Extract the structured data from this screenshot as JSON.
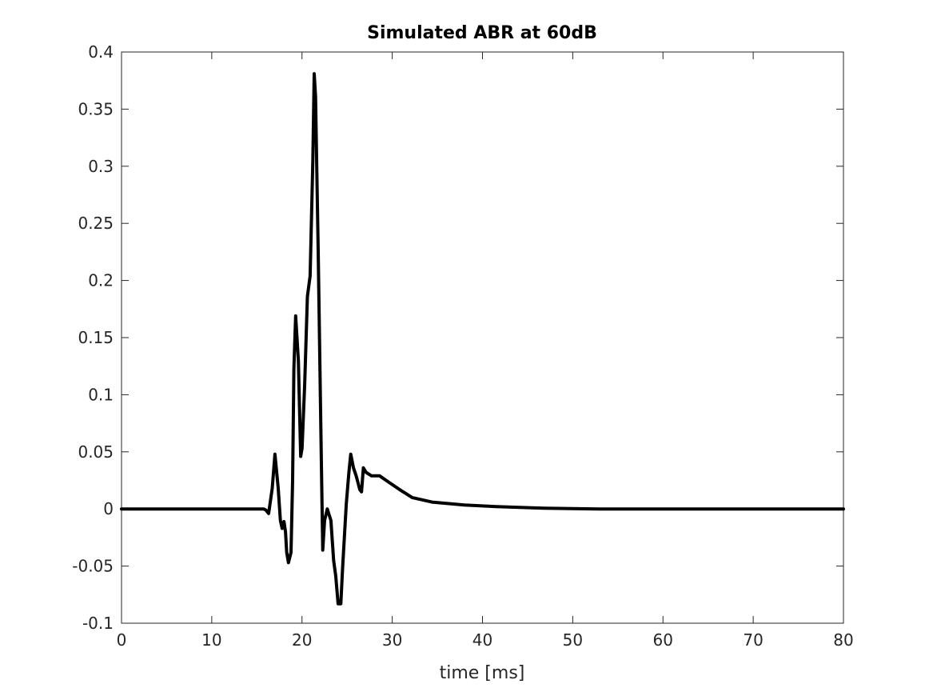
{
  "chart_data": {
    "type": "line",
    "title": "Simulated ABR at 60dB",
    "xlabel": "time [ms]",
    "ylabel": "",
    "xlim": [
      0,
      80
    ],
    "ylim": [
      -0.1,
      0.4
    ],
    "xticks": [
      0,
      10,
      20,
      30,
      40,
      50,
      60,
      70,
      80
    ],
    "xtick_labels": [
      "0",
      "10",
      "20",
      "30",
      "40",
      "50",
      "60",
      "70",
      "80"
    ],
    "yticks": [
      -0.1,
      -0.05,
      0,
      0.05,
      0.1,
      0.15,
      0.2,
      0.25,
      0.3,
      0.35,
      0.4
    ],
    "ytick_labels": [
      "-0.1",
      "-0.05",
      "0",
      "0.05",
      "0.1",
      "0.15",
      "0.2",
      "0.25",
      "0.3",
      "0.35",
      "0.4"
    ],
    "grid": false,
    "line_color": "#000000",
    "series": [
      {
        "x": [
          0,
          15.77,
          16.0,
          16.3,
          16.7,
          17.0,
          17.36,
          17.6,
          17.8,
          18.0,
          18.17,
          18.3,
          18.5,
          18.78,
          18.96,
          19.1,
          19.3,
          19.6,
          19.85,
          20.0,
          20.3,
          20.6,
          20.9,
          21.2,
          21.35,
          21.5,
          21.8,
          22.15,
          22.3,
          22.5,
          22.8,
          23.0,
          23.2,
          23.5,
          23.74,
          24.0,
          24.3,
          24.5,
          24.9,
          25.2,
          25.4,
          25.7,
          26.0,
          26.4,
          26.6,
          26.8,
          27.1,
          27.7,
          28.6,
          29.5,
          30.8,
          32.2,
          34.4,
          38,
          41.5,
          46.8,
          53,
          80
        ],
        "y": [
          0,
          0,
          -0.001,
          -0.004,
          0.018,
          0.048,
          0.018,
          -0.01,
          -0.017,
          -0.011,
          -0.02,
          -0.038,
          -0.047,
          -0.038,
          0.025,
          0.123,
          0.169,
          0.13,
          0.046,
          0.053,
          0.109,
          0.186,
          0.204,
          0.305,
          0.381,
          0.361,
          0.221,
          0.039,
          -0.036,
          -0.01,
          0,
          -0.005,
          -0.01,
          -0.045,
          -0.059,
          -0.083,
          -0.083,
          -0.052,
          0.004,
          0.032,
          0.048,
          0.036,
          0.029,
          0.017,
          0.015,
          0.036,
          0.032,
          0.029,
          0.029,
          0.024,
          0.017,
          0.01,
          0.006,
          0.0035,
          0.002,
          0.0007,
          0,
          0
        ]
      }
    ]
  }
}
